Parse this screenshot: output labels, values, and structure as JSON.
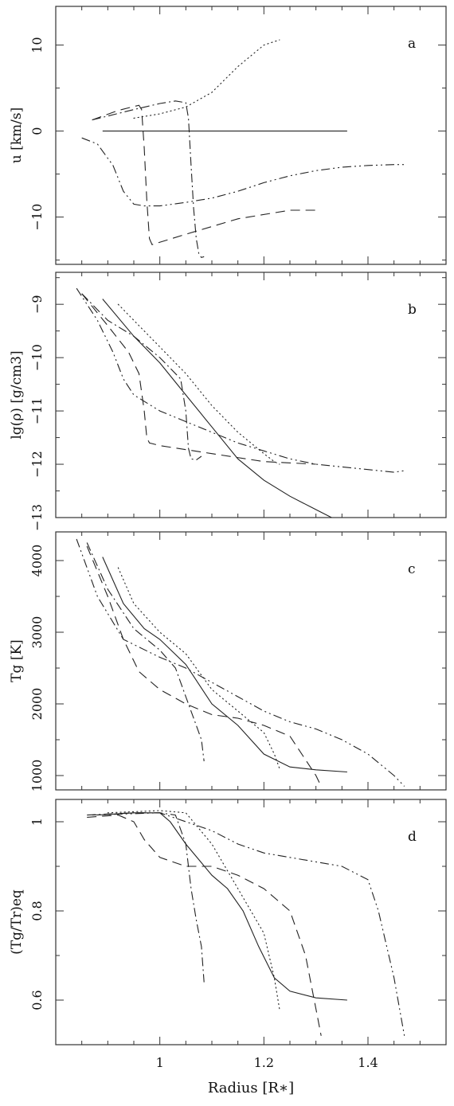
{
  "x_axis": {
    "label": "Radius [R∗]",
    "range": [
      0.8,
      1.55
    ],
    "major_ticks": [
      1.0,
      1.2,
      1.4
    ],
    "tick_labels": [
      "1",
      "1.2",
      "1.4"
    ],
    "minor_step": 0.05
  },
  "chart_data": [
    {
      "panel": "a",
      "type": "line",
      "ylabel": "u [km/s]",
      "ylim": [
        -15.5,
        14.5
      ],
      "yticks": [
        -10,
        0,
        10
      ],
      "ytick_labels": [
        "−10",
        "0",
        "10"
      ],
      "yminor_step": 5,
      "series": [
        {
          "style": "solid",
          "x": [
            0.89,
            1.36
          ],
          "y": [
            0,
            0
          ]
        },
        {
          "style": "dotted",
          "x": [
            0.95,
            1.0,
            1.05,
            1.1,
            1.15,
            1.2,
            1.23
          ],
          "y": [
            1.5,
            2.0,
            2.8,
            4.5,
            7.5,
            10.0,
            10.6
          ]
        },
        {
          "style": "dashed",
          "x": [
            0.87,
            0.92,
            0.96,
            0.965,
            0.97,
            0.975,
            0.98,
            0.985,
            1.05,
            1.15,
            1.25,
            1.3
          ],
          "y": [
            1.3,
            2.4,
            3.0,
            2.5,
            -2.0,
            -8.0,
            -12.5,
            -13.2,
            -12.0,
            -10.2,
            -9.2,
            -9.2
          ]
        },
        {
          "style": "dash-dot",
          "x": [
            0.87,
            0.95,
            1.0,
            1.03,
            1.05,
            1.055,
            1.06,
            1.065,
            1.07,
            1.075,
            1.08,
            1.085
          ],
          "y": [
            1.3,
            2.5,
            3.2,
            3.5,
            3.3,
            1.5,
            -4.0,
            -9.0,
            -12.5,
            -14.3,
            -14.7,
            -14.6
          ]
        },
        {
          "style": "dash-dot-dot",
          "x": [
            0.85,
            0.88,
            0.91,
            0.93,
            0.95,
            0.97,
            1.0,
            1.05,
            1.1,
            1.15,
            1.2,
            1.25,
            1.3,
            1.35,
            1.4,
            1.45,
            1.47
          ],
          "y": [
            -0.8,
            -1.5,
            -4.0,
            -7.0,
            -8.5,
            -8.7,
            -8.7,
            -8.3,
            -7.8,
            -7.0,
            -6.0,
            -5.2,
            -4.6,
            -4.2,
            -4.0,
            -3.9,
            -3.9
          ]
        }
      ]
    },
    {
      "panel": "b",
      "type": "line",
      "ylabel": "lg(ρ) [g/cm3]",
      "ylim": [
        -13.0,
        -8.4
      ],
      "yticks": [
        -13,
        -12,
        -11,
        -10,
        -9
      ],
      "ytick_labels": [
        "−13",
        "−12",
        "−11",
        "−10",
        "−9"
      ],
      "yminor_step": 0.5,
      "series": [
        {
          "style": "solid",
          "x": [
            0.89,
            0.95,
            1.0,
            1.05,
            1.1,
            1.15,
            1.2,
            1.25,
            1.3,
            1.33
          ],
          "y": [
            -8.9,
            -9.6,
            -10.1,
            -10.7,
            -11.3,
            -11.9,
            -12.3,
            -12.6,
            -12.85,
            -13.0
          ]
        },
        {
          "style": "dotted",
          "x": [
            0.92,
            0.95,
            1.0,
            1.05,
            1.1,
            1.15,
            1.2,
            1.22,
            1.23
          ],
          "y": [
            -9.0,
            -9.3,
            -9.8,
            -10.3,
            -10.9,
            -11.4,
            -11.8,
            -11.95,
            -12.0
          ]
        },
        {
          "style": "dashed",
          "x": [
            0.85,
            0.9,
            0.94,
            0.96,
            0.97,
            0.975,
            0.98,
            1.0,
            1.1,
            1.2,
            1.3
          ],
          "y": [
            -8.8,
            -9.4,
            -9.9,
            -10.3,
            -11.0,
            -11.5,
            -11.6,
            -11.65,
            -11.8,
            -11.95,
            -12.0
          ]
        },
        {
          "style": "dash-dot",
          "x": [
            0.85,
            0.9,
            0.95,
            1.0,
            1.04,
            1.05,
            1.055,
            1.06,
            1.07,
            1.08
          ],
          "y": [
            -8.8,
            -9.3,
            -9.6,
            -10.0,
            -10.4,
            -11.0,
            -11.7,
            -11.9,
            -11.92,
            -11.85
          ]
        },
        {
          "style": "dash-dot-dot",
          "x": [
            0.84,
            0.88,
            0.91,
            0.93,
            0.95,
            1.0,
            1.05,
            1.1,
            1.15,
            1.2,
            1.25,
            1.3,
            1.35,
            1.4,
            1.45,
            1.47
          ],
          "y": [
            -8.7,
            -9.3,
            -9.9,
            -10.4,
            -10.7,
            -11.0,
            -11.2,
            -11.4,
            -11.6,
            -11.75,
            -11.9,
            -12.0,
            -12.05,
            -12.1,
            -12.15,
            -12.12
          ]
        }
      ]
    },
    {
      "panel": "c",
      "type": "line",
      "ylabel": "Tg [K]",
      "ylim": [
        800,
        4400
      ],
      "yticks": [
        1000,
        2000,
        3000,
        4000
      ],
      "ytick_labels": [
        "1000",
        "2000",
        "3000",
        "4000"
      ],
      "yminor_step": 500,
      "series": [
        {
          "style": "solid",
          "x": [
            0.89,
            0.93,
            0.97,
            1.0,
            1.05,
            1.1,
            1.15,
            1.2,
            1.25,
            1.3,
            1.36
          ],
          "y": [
            4050,
            3400,
            3050,
            2900,
            2550,
            2000,
            1700,
            1300,
            1120,
            1080,
            1050
          ]
        },
        {
          "style": "dotted",
          "x": [
            0.92,
            0.95,
            1.0,
            1.05,
            1.1,
            1.15,
            1.2,
            1.22,
            1.23
          ],
          "y": [
            3900,
            3400,
            3000,
            2700,
            2200,
            1900,
            1600,
            1300,
            1100
          ]
        },
        {
          "style": "dashed",
          "x": [
            0.86,
            0.9,
            0.93,
            0.96,
            1.0,
            1.05,
            1.1,
            1.15,
            1.2,
            1.25,
            1.3,
            1.31
          ],
          "y": [
            4200,
            3500,
            2900,
            2450,
            2200,
            2000,
            1850,
            1800,
            1700,
            1550,
            1000,
            850
          ]
        },
        {
          "style": "dash-dot",
          "x": [
            0.86,
            0.9,
            0.95,
            1.0,
            1.03,
            1.05,
            1.07,
            1.08,
            1.085
          ],
          "y": [
            4250,
            3600,
            3050,
            2750,
            2500,
            2100,
            1700,
            1500,
            1200
          ]
        },
        {
          "style": "dash-dot-dot",
          "x": [
            0.84,
            0.88,
            0.93,
            1.0,
            1.05,
            1.1,
            1.15,
            1.2,
            1.25,
            1.3,
            1.35,
            1.4,
            1.45,
            1.47
          ],
          "y": [
            4300,
            3500,
            2900,
            2650,
            2500,
            2300,
            2100,
            1900,
            1750,
            1650,
            1500,
            1300,
            1000,
            850
          ]
        }
      ]
    },
    {
      "panel": "d",
      "type": "line",
      "ylabel": "(Tg/Tr)eq",
      "ylim": [
        0.5,
        1.05
      ],
      "yticks": [
        0.6,
        0.8,
        1.0
      ],
      "ytick_labels": [
        "0.6",
        "0.8",
        "1"
      ],
      "yminor_step": 0.1,
      "series": [
        {
          "style": "solid",
          "x": [
            0.88,
            0.95,
            1.0,
            1.02,
            1.05,
            1.1,
            1.13,
            1.16,
            1.19,
            1.22,
            1.25,
            1.3,
            1.36
          ],
          "y": [
            1.015,
            1.02,
            1.02,
            1.0,
            0.95,
            0.88,
            0.85,
            0.8,
            0.72,
            0.65,
            0.62,
            0.605,
            0.6
          ]
        },
        {
          "style": "dotted",
          "x": [
            0.9,
            1.0,
            1.05,
            1.1,
            1.15,
            1.2,
            1.22,
            1.23
          ],
          "y": [
            1.02,
            1.025,
            1.02,
            0.95,
            0.85,
            0.75,
            0.65,
            0.58
          ]
        },
        {
          "style": "dashed",
          "x": [
            0.86,
            0.92,
            0.95,
            0.97,
            1.0,
            1.05,
            1.1,
            1.15,
            1.2,
            1.25,
            1.28,
            1.3,
            1.31
          ],
          "y": [
            1.01,
            1.015,
            1.0,
            0.96,
            0.92,
            0.9,
            0.9,
            0.88,
            0.85,
            0.8,
            0.7,
            0.58,
            0.52
          ]
        },
        {
          "style": "dash-dot",
          "x": [
            0.86,
            0.95,
            1.0,
            1.03,
            1.05,
            1.06,
            1.07,
            1.08,
            1.085
          ],
          "y": [
            1.015,
            1.02,
            1.02,
            1.015,
            0.95,
            0.85,
            0.78,
            0.72,
            0.64
          ]
        },
        {
          "style": "dash-dot-dot",
          "x": [
            0.87,
            1.0,
            1.05,
            1.1,
            1.15,
            1.2,
            1.25,
            1.3,
            1.35,
            1.4,
            1.42,
            1.45,
            1.47
          ],
          "y": [
            1.015,
            1.02,
            1.0,
            0.98,
            0.95,
            0.93,
            0.92,
            0.91,
            0.9,
            0.87,
            0.8,
            0.65,
            0.52
          ]
        }
      ]
    }
  ]
}
